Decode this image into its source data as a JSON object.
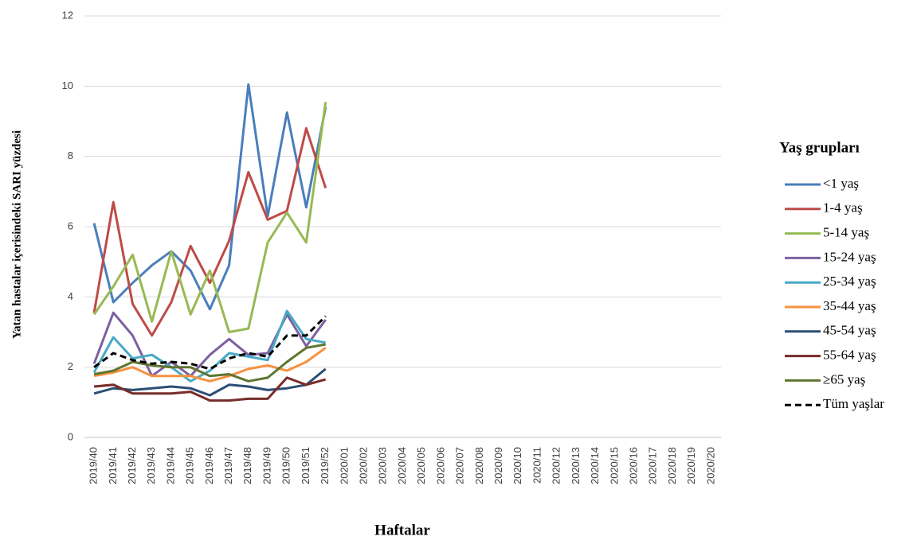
{
  "chart_data": {
    "type": "line",
    "y_label": "Yatan hastalar içerisindeki SARI yüzdesi",
    "x_label": "Haftalar",
    "legend_title": "Yaş grupları",
    "legend_position": "right",
    "grid": true,
    "ylim": [
      0,
      12
    ],
    "yticks": [
      0,
      2,
      4,
      6,
      8,
      10,
      12
    ],
    "categories": [
      "2019/40",
      "2019/41",
      "2019/42",
      "2019/43",
      "2019/44",
      "2019/45",
      "2019/46",
      "2019/47",
      "2019/48",
      "2019/49",
      "2019/50",
      "2019/51",
      "2019/52",
      "2020/01",
      "2020/02",
      "2020/03",
      "2020/04",
      "2020/05",
      "2020/06",
      "2020/07",
      "2020/08",
      "2020/09",
      "2020/10",
      "2020/11",
      "2020/12",
      "2020/13",
      "2020/14",
      "2020/15",
      "2020/16",
      "2020/17",
      "2020/18",
      "2020/19",
      "2020/20"
    ],
    "series": [
      {
        "name": "<1 yaş",
        "color": "#4a7ebb",
        "values": [
          6.1,
          3.85,
          4.4,
          4.9,
          5.3,
          4.75,
          3.65,
          4.9,
          10.05,
          6.3,
          9.25,
          6.55,
          9.4,
          null,
          null,
          null,
          null,
          null,
          null,
          null,
          null,
          null,
          null,
          null,
          null,
          null,
          null,
          null,
          null,
          null,
          null,
          null,
          null
        ]
      },
      {
        "name": "1-4 yaş",
        "color": "#be4b48",
        "values": [
          3.55,
          6.7,
          3.8,
          2.9,
          3.85,
          5.45,
          4.4,
          5.6,
          7.55,
          6.2,
          6.45,
          8.8,
          7.1,
          null,
          null,
          null,
          null,
          null,
          null,
          null,
          null,
          null,
          null,
          null,
          null,
          null,
          null,
          null,
          null,
          null,
          null,
          null,
          null
        ]
      },
      {
        "name": "5-14 yaş",
        "color": "#98b954",
        "values": [
          3.5,
          4.3,
          5.2,
          3.3,
          5.3,
          3.5,
          4.75,
          3.0,
          3.1,
          5.55,
          6.4,
          5.55,
          9.55,
          null,
          null,
          null,
          null,
          null,
          null,
          null,
          null,
          null,
          null,
          null,
          null,
          null,
          null,
          null,
          null,
          null,
          null,
          null,
          null
        ]
      },
      {
        "name": "15-24 yaş",
        "color": "#7d60a0",
        "values": [
          2.1,
          3.55,
          2.9,
          1.75,
          2.15,
          1.75,
          2.35,
          2.8,
          2.35,
          2.4,
          3.5,
          2.6,
          3.35,
          null,
          null,
          null,
          null,
          null,
          null,
          null,
          null,
          null,
          null,
          null,
          null,
          null,
          null,
          null,
          null,
          null,
          null,
          null,
          null
        ]
      },
      {
        "name": "25-34 yaş",
        "color": "#46aac5",
        "values": [
          1.85,
          2.85,
          2.25,
          2.35,
          2.0,
          1.6,
          1.9,
          2.4,
          2.3,
          2.2,
          3.6,
          2.8,
          2.7,
          null,
          null,
          null,
          null,
          null,
          null,
          null,
          null,
          null,
          null,
          null,
          null,
          null,
          null,
          null,
          null,
          null,
          null,
          null,
          null
        ]
      },
      {
        "name": "35-44 yaş",
        "color": "#f69240",
        "values": [
          1.75,
          1.85,
          2.0,
          1.75,
          1.75,
          1.75,
          1.6,
          1.75,
          1.95,
          2.05,
          1.9,
          2.15,
          2.55,
          null,
          null,
          null,
          null,
          null,
          null,
          null,
          null,
          null,
          null,
          null,
          null,
          null,
          null,
          null,
          null,
          null,
          null,
          null,
          null
        ]
      },
      {
        "name": "45-54  yaş",
        "color": "#2c4d75",
        "values": [
          1.25,
          1.4,
          1.35,
          1.4,
          1.45,
          1.4,
          1.2,
          1.5,
          1.45,
          1.35,
          1.4,
          1.5,
          1.95,
          null,
          null,
          null,
          null,
          null,
          null,
          null,
          null,
          null,
          null,
          null,
          null,
          null,
          null,
          null,
          null,
          null,
          null,
          null,
          null
        ]
      },
      {
        "name": "55-64 yaş",
        "color": "#772c2a",
        "values": [
          1.45,
          1.5,
          1.25,
          1.25,
          1.25,
          1.3,
          1.05,
          1.05,
          1.1,
          1.1,
          1.7,
          1.5,
          1.65,
          null,
          null,
          null,
          null,
          null,
          null,
          null,
          null,
          null,
          null,
          null,
          null,
          null,
          null,
          null,
          null,
          null,
          null,
          null,
          null
        ]
      },
      {
        "name": "≥65 yaş",
        "color": "#5f7530",
        "values": [
          1.8,
          1.9,
          2.15,
          2.05,
          2.0,
          2.0,
          1.75,
          1.8,
          1.6,
          1.7,
          2.15,
          2.55,
          2.65,
          null,
          null,
          null,
          null,
          null,
          null,
          null,
          null,
          null,
          null,
          null,
          null,
          null,
          null,
          null,
          null,
          null,
          null,
          null,
          null
        ]
      },
      {
        "name": "Tüm yaşlar",
        "color": "#000000",
        "dashed": true,
        "values": [
          2.0,
          2.4,
          2.2,
          2.1,
          2.15,
          2.1,
          1.95,
          2.25,
          2.4,
          2.3,
          2.9,
          2.9,
          3.45,
          null,
          null,
          null,
          null,
          null,
          null,
          null,
          null,
          null,
          null,
          null,
          null,
          null,
          null,
          null,
          null,
          null,
          null,
          null,
          null
        ]
      }
    ]
  }
}
